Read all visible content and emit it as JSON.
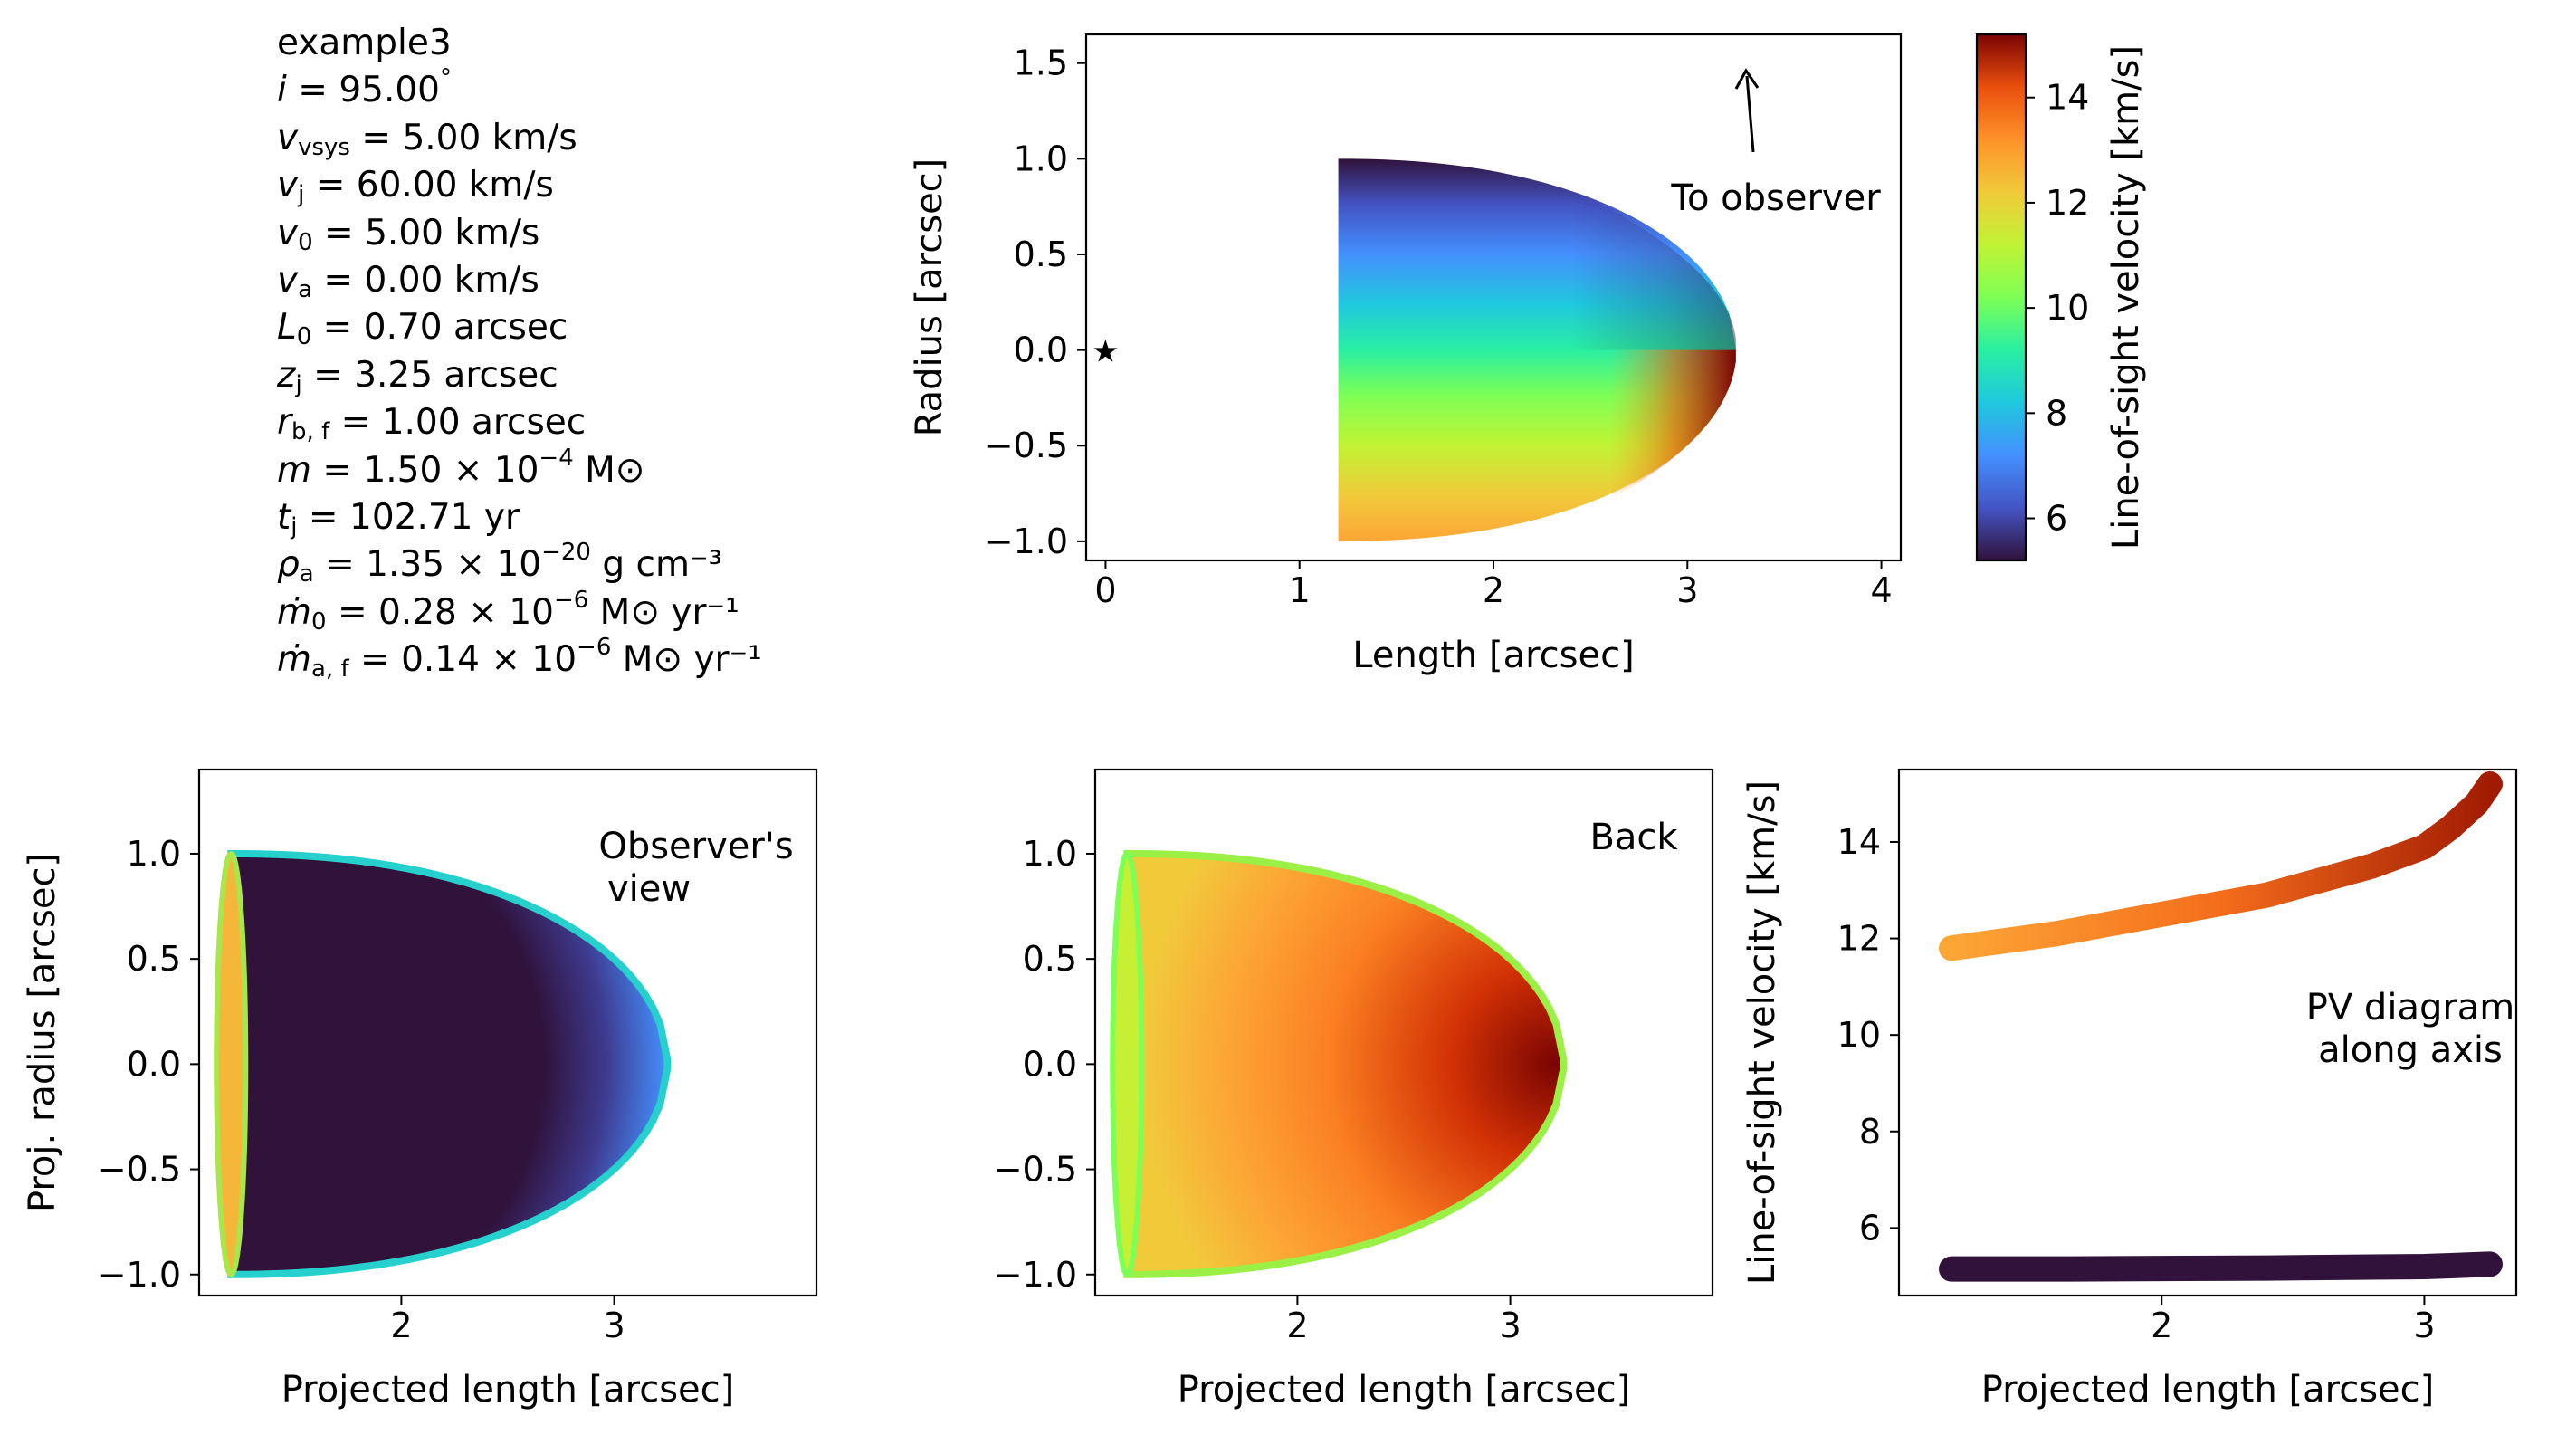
{
  "params": {
    "name": "example3",
    "lines": [
      {
        "sym": "i",
        "sub": "",
        "sup": "",
        "val": " = 95.00",
        "tail": "°",
        "tailsup": "",
        "tail2": ""
      },
      {
        "sym": "v",
        "sub": "vsys",
        "sup": "",
        "val": " = 5.00 km/s",
        "tail": "",
        "tailsup": "",
        "tail2": ""
      },
      {
        "sym": "v",
        "sub": "j",
        "sup": "",
        "val": " = 60.00 km/s",
        "tail": "",
        "tailsup": "",
        "tail2": ""
      },
      {
        "sym": "v",
        "sub": "0",
        "sup": "",
        "val": " = 5.00 km/s",
        "tail": "",
        "tailsup": "",
        "tail2": ""
      },
      {
        "sym": "v",
        "sub": "a",
        "sup": "",
        "val": " = 0.00 km/s",
        "tail": "",
        "tailsup": "",
        "tail2": ""
      },
      {
        "sym": "L",
        "sub": "0",
        "sup": "",
        "val": " = 0.70 arcsec",
        "tail": "",
        "tailsup": "",
        "tail2": ""
      },
      {
        "sym": "z",
        "sub": "j",
        "sup": "",
        "val": " = 3.25 arcsec",
        "tail": "",
        "tailsup": "",
        "tail2": ""
      },
      {
        "sym": "r",
        "sub": "b, f",
        "sup": "",
        "val": " = 1.00 arcsec",
        "tail": "",
        "tailsup": "",
        "tail2": ""
      },
      {
        "sym": "m",
        "sub": "",
        "sup": "",
        "val": " = 1.50 × 10",
        "tail": "",
        "tailsup": "−4",
        "tail2": " M⊙"
      },
      {
        "sym": "t",
        "sub": "j",
        "sup": "",
        "val": " = 102.71 yr",
        "tail": "",
        "tailsup": "",
        "tail2": ""
      },
      {
        "sym": "ρ",
        "sub": "a",
        "sup": "",
        "val": " = 1.35 × 10",
        "tail": "",
        "tailsup": "−20",
        "tail2": " g cm⁻³"
      },
      {
        "sym": "ṁ",
        "sub": "0",
        "sup": "",
        "val": " = 0.28 × 10",
        "tail": "",
        "tailsup": "−6",
        "tail2": " M⊙ yr⁻¹"
      },
      {
        "sym": "ṁ",
        "sub": "a, f",
        "sup": "",
        "val": " = 0.14 × 10",
        "tail": "",
        "tailsup": "−6",
        "tail2": " M⊙ yr⁻¹"
      }
    ]
  },
  "chart_data": [
    {
      "type": "heatmap",
      "panel": "top",
      "xlabel": "Length [arcsec]",
      "ylabel": "Radius [arcsec]",
      "xlim": [
        -0.1,
        4.1
      ],
      "ylim": [
        -1.1,
        1.65
      ],
      "xticks": [
        "0",
        "1",
        "2",
        "3",
        "4"
      ],
      "yticks": [
        "−1.0",
        "−0.5",
        "0.0",
        "0.5",
        "1.0",
        "1.5"
      ],
      "star": {
        "x": 0,
        "y": 0,
        "marker": "★"
      },
      "annotation": "To observer",
      "shell": {
        "z_min": 1.2,
        "z_max": 3.25,
        "r_max": 1.0
      },
      "colorbar": {
        "label": "Line-of-sight velocity [km/s]",
        "range": [
          5.2,
          15.2
        ],
        "ticks": [
          "6",
          "8",
          "10",
          "12",
          "14"
        ],
        "colormap": "turbo"
      }
    },
    {
      "type": "heatmap",
      "panel": "bottom-left",
      "title_text": [
        "Observer's",
        "view"
      ],
      "xlabel": "Projected length [arcsec]",
      "ylabel": "Proj. radius [arcsec]",
      "xlim": [
        1.05,
        3.95
      ],
      "ylim": [
        -1.1,
        1.4
      ],
      "xticks": [
        "2",
        "3"
      ],
      "yticks": [
        "−1.0",
        "−0.5",
        "0.0",
        "0.5",
        "1.0"
      ]
    },
    {
      "type": "heatmap",
      "panel": "bottom-middle",
      "title_text": [
        "Back"
      ],
      "xlabel": "Projected length [arcsec]",
      "xlim": [
        1.05,
        3.95
      ],
      "ylim": [
        -1.1,
        1.4
      ],
      "xticks": [
        "2",
        "3"
      ],
      "yticks": [
        "−1.0",
        "−0.5",
        "0.0",
        "0.5",
        "1.0"
      ]
    },
    {
      "type": "scatter",
      "panel": "bottom-right",
      "title_text": [
        "PV diagram",
        "along axis"
      ],
      "xlabel": "Projected length [arcsec]",
      "ylabel": "Line-of-sight velocity [km/s]",
      "xlim": [
        1.0,
        3.35
      ],
      "ylim": [
        4.6,
        15.5
      ],
      "xticks": [
        "2",
        "3"
      ],
      "yticks": [
        "6",
        "8",
        "10",
        "12",
        "14"
      ],
      "series": [
        {
          "x": [
            1.2,
            1.6,
            2.0,
            2.4,
            2.8,
            3.0,
            3.1,
            3.2,
            3.25
          ],
          "y": [
            11.8,
            12.1,
            12.5,
            12.9,
            13.5,
            13.9,
            14.3,
            14.8,
            15.2
          ]
        },
        {
          "x": [
            1.2,
            1.6,
            2.0,
            2.4,
            2.8,
            3.0,
            3.1,
            3.2,
            3.25
          ],
          "y": [
            5.15,
            5.15,
            5.16,
            5.17,
            5.19,
            5.2,
            5.22,
            5.24,
            5.25
          ]
        }
      ]
    }
  ]
}
